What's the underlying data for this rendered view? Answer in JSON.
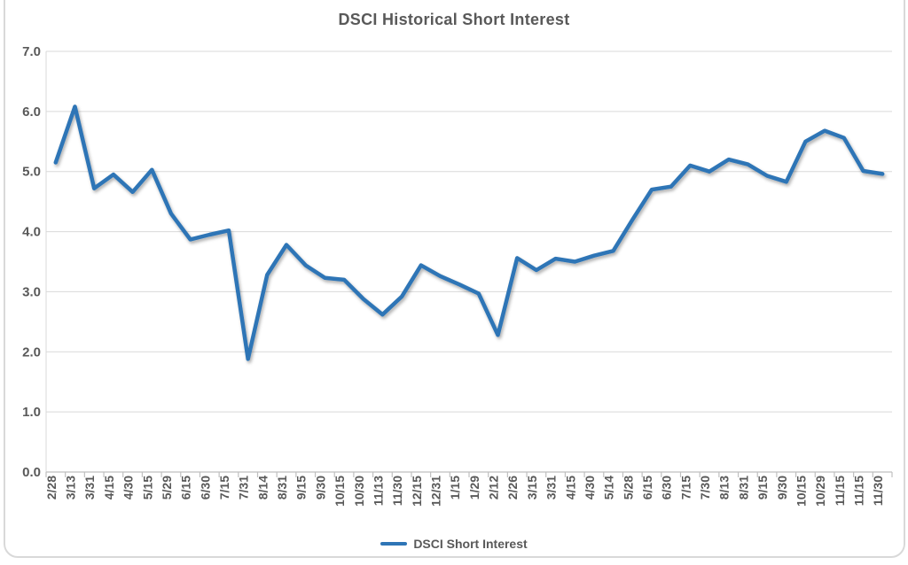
{
  "chart_data": {
    "type": "line",
    "title": "DSCI Historical Short Interest",
    "categories": [
      "2/28",
      "3/13",
      "3/31",
      "4/15",
      "4/30",
      "5/15",
      "5/29",
      "6/15",
      "6/30",
      "7/15",
      "7/31",
      "8/14",
      "8/31",
      "9/15",
      "9/30",
      "10/15",
      "10/30",
      "11/13",
      "11/30",
      "12/15",
      "12/31",
      "1/15",
      "1/29",
      "2/12",
      "2/26",
      "3/15",
      "3/31",
      "4/15",
      "4/30",
      "5/14",
      "5/28",
      "6/15",
      "6/30",
      "7/15",
      "7/30",
      "8/13",
      "8/31",
      "9/15",
      "9/30",
      "10/15",
      "10/29",
      "11/15",
      "11/15",
      "11/30"
    ],
    "series": [
      {
        "name": "DSCI Short Interest",
        "color": "#2E75B6",
        "values": [
          5.15,
          6.08,
          4.72,
          4.95,
          4.66,
          5.03,
          4.3,
          3.87,
          3.95,
          4.02,
          1.88,
          3.28,
          3.78,
          3.44,
          3.23,
          3.2,
          2.88,
          2.62,
          2.92,
          3.44,
          3.26,
          3.12,
          2.97,
          2.28,
          3.56,
          3.36,
          3.55,
          3.5,
          3.6,
          3.68,
          4.2,
          4.7,
          4.75,
          5.1,
          5.0,
          5.2,
          5.12,
          4.93,
          4.83,
          5.5,
          5.68,
          5.56,
          5.01,
          4.96
        ]
      }
    ],
    "xlabel": "",
    "ylabel": "",
    "ylim": [
      0,
      7
    ],
    "y_ticks": [
      "0.0",
      "1.0",
      "2.0",
      "3.0",
      "4.0",
      "5.0",
      "6.0",
      "7.0"
    ],
    "grid": "horizontal",
    "legend_position": "bottom",
    "x_label_rotation": 90
  },
  "colors": {
    "line": "#2E75B6",
    "gridline": "#d9d9d9",
    "axis": "#bfbfbf",
    "text": "#595959",
    "background": "#ffffff"
  }
}
